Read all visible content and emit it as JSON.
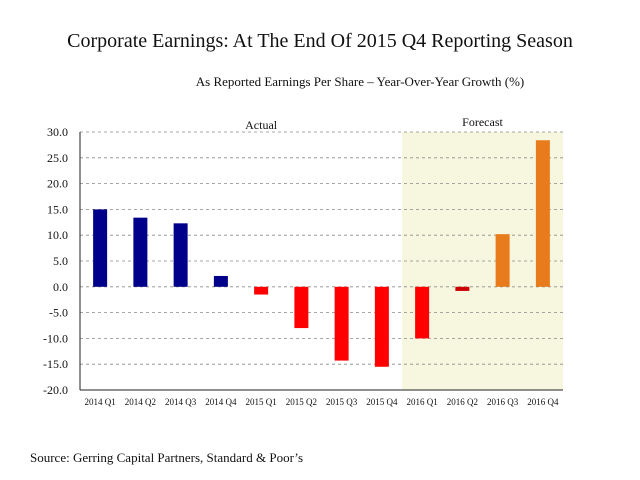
{
  "title": "Corporate Earnings: At The End Of 2015 Q4 Reporting Season",
  "source": "Source: Gerring Capital Partners, Standard & Poor’s",
  "colors": {
    "actual_positive": "#00008b",
    "actual_negative": "#ff0000",
    "forecast_positive": "#e87b1c",
    "forecast_negative": "#cc0000",
    "forecast_shade": "#f7f7df"
  },
  "chart_data": {
    "type": "bar",
    "subtitle": "As Reported Earnings Per Share – Year-Over-Year Growth (%)",
    "categories": [
      "2014 Q1",
      "2014 Q2",
      "2014 Q3",
      "2014 Q4",
      "2015 Q1",
      "2015 Q2",
      "2015 Q3",
      "2015 Q4",
      "2016 Q1",
      "2016 Q2",
      "2016 Q3",
      "2016 Q4"
    ],
    "values": [
      15.0,
      13.4,
      12.3,
      2.1,
      -1.5,
      -8.0,
      -14.3,
      -15.5,
      -10.0,
      -0.8,
      10.2,
      28.4
    ],
    "section_labels": {
      "actual": "Actual",
      "forecast": "Forecast"
    },
    "forecast_from": "2016 Q1",
    "yticks": [
      "30.0",
      "25.0",
      "20.0",
      "15.0",
      "10.0",
      "5.0",
      "0.0",
      "-5.0",
      "-10.0",
      "-15.0",
      "-20.0"
    ],
    "ylim": [
      -20,
      30
    ],
    "grid": true
  }
}
